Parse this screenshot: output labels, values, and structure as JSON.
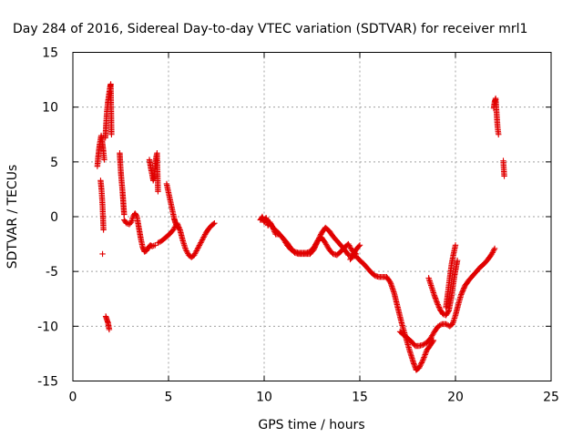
{
  "chart_data": {
    "type": "scatter",
    "title": "Day 284 of 2016, Sidereal Day-to-day VTEC variation (SDTVAR) for receiver mrl1",
    "xlabel": "GPS time / hours",
    "ylabel": "SDTVAR / TECUs",
    "xlim": [
      0,
      25
    ],
    "ylim": [
      -15,
      15
    ],
    "xticks": [
      0,
      5,
      10,
      15,
      20,
      25
    ],
    "yticks": [
      -15,
      -10,
      -5,
      0,
      5,
      10,
      15
    ],
    "grid": true,
    "marker": "+",
    "color": "#e00000",
    "segments": [
      {
        "name": "s1",
        "x": [
          1.28,
          1.32,
          1.36,
          1.4,
          1.44,
          1.48,
          1.52,
          1.56,
          1.6,
          1.64
        ],
        "y": [
          4.6,
          5.4,
          6.0,
          6.6,
          7.0,
          7.4,
          7.0,
          6.5,
          5.9,
          5.2
        ]
      },
      {
        "name": "s2",
        "x": [
          1.45,
          1.5,
          1.55,
          1.6
        ],
        "y": [
          3.3,
          2.4,
          1.0,
          -1.2
        ]
      },
      {
        "name": "s3",
        "x": [
          1.55
        ],
        "y": [
          -3.4
        ]
      },
      {
        "name": "s4",
        "x": [
          1.7,
          1.74,
          1.78,
          1.82,
          1.86,
          1.9,
          1.94,
          1.98,
          2.02
        ],
        "y": [
          7.2,
          8.5,
          9.6,
          10.3,
          10.8,
          11.3,
          11.8,
          12.1,
          7.5
        ]
      },
      {
        "name": "s5",
        "x": [
          1.72,
          1.78,
          1.84,
          1.9
        ],
        "y": [
          -9.1,
          -9.4,
          -9.7,
          -10.3
        ]
      },
      {
        "name": "s6",
        "x": [
          2.45,
          2.48,
          2.52,
          2.56,
          2.6,
          2.64,
          2.68
        ],
        "y": [
          5.8,
          4.8,
          3.8,
          3.0,
          2.2,
          1.2,
          0.2
        ]
      },
      {
        "name": "s7",
        "x": [
          2.68,
          2.8,
          2.95,
          3.05,
          3.15,
          3.25,
          3.35,
          3.45,
          3.55,
          3.65,
          3.75,
          3.85,
          3.95,
          4.05,
          4.15,
          4.3
        ],
        "y": [
          -0.3,
          -0.6,
          -0.7,
          -0.5,
          0.0,
          0.3,
          0.0,
          -1.0,
          -2.0,
          -2.8,
          -3.2,
          -3.1,
          -2.8,
          -2.6,
          -2.7,
          -2.6
        ]
      },
      {
        "name": "s8",
        "x": [
          4.0,
          4.05,
          4.1,
          4.15,
          4.2,
          4.25,
          4.3,
          4.35,
          4.4,
          4.45
        ],
        "y": [
          5.2,
          4.7,
          4.2,
          3.8,
          3.3,
          3.6,
          4.6,
          5.4,
          5.8,
          2.3
        ]
      },
      {
        "name": "s9",
        "x": [
          4.45,
          4.65,
          4.85,
          5.05,
          5.25,
          5.45,
          5.6,
          5.75,
          5.9,
          6.05,
          6.2,
          6.35,
          6.5,
          6.65,
          6.8,
          6.95,
          7.1,
          7.25,
          7.4
        ],
        "y": [
          -2.4,
          -2.2,
          -1.9,
          -1.6,
          -1.2,
          -0.6,
          -1.2,
          -2.2,
          -3.0,
          -3.5,
          -3.7,
          -3.5,
          -3.0,
          -2.5,
          -2.0,
          -1.5,
          -1.1,
          -0.8,
          -0.6
        ]
      },
      {
        "name": "s10",
        "x": [
          4.9,
          4.95,
          5.0,
          5.05,
          5.1,
          5.15,
          5.2,
          5.25,
          5.3,
          5.35,
          5.4,
          5.45,
          5.5
        ],
        "y": [
          3.0,
          2.6,
          2.2,
          1.8,
          1.4,
          1.0,
          0.6,
          0.2,
          -0.2,
          -0.5,
          -0.7,
          -0.9,
          -1.0
        ]
      },
      {
        "name": "s11",
        "x": [
          9.8,
          9.9,
          10.0,
          10.1,
          10.2,
          10.3,
          10.45,
          10.6,
          10.8,
          11.0,
          11.2,
          11.4,
          11.6,
          11.8,
          12.0,
          12.2,
          12.4,
          12.6,
          12.8,
          13.0,
          13.2,
          13.4,
          13.6,
          13.8,
          14.0,
          14.2,
          14.4,
          14.6,
          14.8,
          15.0,
          15.2,
          15.4,
          15.6,
          15.8,
          16.0,
          16.2,
          16.4,
          16.6,
          16.8,
          17.0,
          17.2,
          17.4,
          17.6,
          17.8,
          17.95,
          18.1,
          18.3,
          18.5,
          18.7,
          18.85
        ],
        "y": [
          -0.3,
          0.0,
          -0.5,
          -0.1,
          -0.8,
          -0.5,
          -1.0,
          -1.6,
          -1.6,
          -2.0,
          -2.6,
          -3.0,
          -3.2,
          -3.3,
          -3.3,
          -3.3,
          -3.2,
          -2.8,
          -2.2,
          -1.5,
          -1.0,
          -1.3,
          -1.8,
          -2.2,
          -2.6,
          -3.0,
          -3.5,
          -3.6,
          -3.6,
          -4.0,
          -4.3,
          -4.7,
          -5.1,
          -5.4,
          -5.5,
          -5.5,
          -5.5,
          -6.0,
          -7.0,
          -8.4,
          -9.8,
          -11.0,
          -12.2,
          -13.3,
          -14.0,
          -13.8,
          -13.1,
          -12.2,
          -11.7,
          -11.3
        ]
      },
      {
        "name": "s12",
        "x": [
          10.2,
          10.35,
          10.5,
          10.65,
          10.8,
          11.0,
          11.2,
          11.4,
          11.6,
          11.8,
          12.0,
          12.2,
          12.4,
          12.6,
          12.8,
          13.0,
          13.2,
          13.4,
          13.6,
          13.8,
          14.0,
          14.2,
          14.4,
          14.6,
          14.8
        ],
        "y": [
          -0.4,
          -0.7,
          -1.1,
          -1.3,
          -1.6,
          -2.0,
          -2.4,
          -2.9,
          -3.3,
          -3.4,
          -3.4,
          -3.4,
          -3.4,
          -3.0,
          -2.2,
          -1.9,
          -2.4,
          -3.0,
          -3.4,
          -3.5,
          -3.2,
          -2.8,
          -2.5,
          -3.1,
          -3.4
        ]
      },
      {
        "name": "s13",
        "x": [
          14.5,
          14.6,
          14.7,
          14.8,
          14.9,
          15.0
        ],
        "y": [
          -3.9,
          -3.7,
          -3.3,
          -3.0,
          -2.8,
          -2.6
        ]
      },
      {
        "name": "s14",
        "x": [
          17.1,
          17.3,
          17.5,
          17.7,
          17.9,
          18.1,
          18.3,
          18.5,
          18.7,
          18.9,
          19.1,
          19.3,
          19.5,
          19.7,
          19.85,
          20.0,
          20.15,
          20.3,
          20.5,
          20.7,
          20.9,
          21.1,
          21.3,
          21.5,
          21.7,
          21.9,
          22.05
        ],
        "y": [
          -10.5,
          -10.8,
          -11.1,
          -11.4,
          -11.8,
          -11.8,
          -11.7,
          -11.5,
          -11.1,
          -10.5,
          -10.0,
          -9.8,
          -9.8,
          -10.0,
          -9.8,
          -9.0,
          -8.0,
          -7.1,
          -6.3,
          -5.8,
          -5.4,
          -5.0,
          -4.6,
          -4.3,
          -3.9,
          -3.4,
          -2.9
        ]
      },
      {
        "name": "s15",
        "x": [
          18.6,
          18.75,
          18.9,
          19.05,
          19.2,
          19.35,
          19.5,
          19.65,
          19.8,
          19.95,
          20.1
        ],
        "y": [
          -5.6,
          -6.4,
          -7.2,
          -7.9,
          -8.5,
          -8.9,
          -9.0,
          -8.6,
          -7.2,
          -5.4,
          -4.0
        ]
      },
      {
        "name": "s16",
        "x": [
          19.5,
          19.6,
          19.7,
          19.8,
          19.9,
          20.0
        ],
        "y": [
          -8.3,
          -7.0,
          -5.6,
          -4.3,
          -3.4,
          -2.6
        ]
      },
      {
        "name": "s17",
        "x": [
          22.0,
          22.05,
          22.1,
          22.15,
          22.2,
          22.25
        ],
        "y": [
          9.9,
          10.5,
          10.8,
          9.5,
          8.2,
          7.5
        ]
      },
      {
        "name": "s18",
        "x": [
          22.5,
          22.55
        ],
        "y": [
          5.1,
          3.7
        ]
      }
    ]
  }
}
